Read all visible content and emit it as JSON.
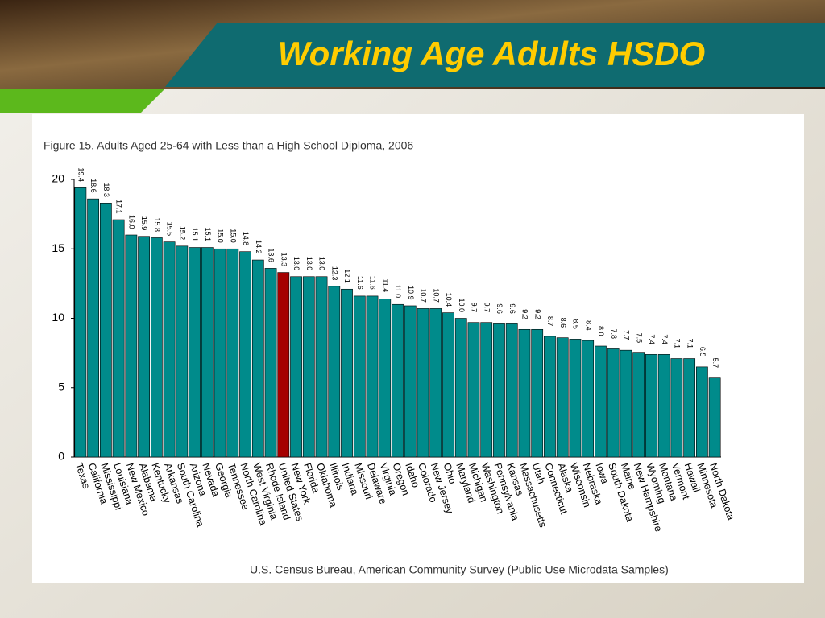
{
  "slide_title": "Working Age Adults HSDO",
  "chart_data": {
    "type": "bar",
    "title": "Figure 15. Adults Aged 25-64 with Less than a High School Diploma, 2006",
    "source": "U.S. Census Bureau, American Community Survey (Public Use Microdata Samples)",
    "categories": [
      "Texas",
      "California",
      "Mississippi",
      "Louisiana",
      "New Mexico",
      "Alabama",
      "Kentucky",
      "Arkansas",
      "South Carolina",
      "Arizona",
      "Nevada",
      "Georgia",
      "Tennessee",
      "North Carolina",
      "West Virginia",
      "Rhode Island",
      "United States",
      "New York",
      "Florida",
      "Oklahoma",
      "Illinois",
      "Indiana",
      "Missouri",
      "Delaware",
      "Virginia",
      "Oregon",
      "Idaho",
      "Colorado",
      "New Jersey",
      "Ohio",
      "Maryland",
      "Michigan",
      "Washington",
      "Pennsylvania",
      "Kansas",
      "Massachusetts",
      "Utah",
      "Connecticut",
      "Alaska",
      "Wisconsin",
      "Nebraska",
      "Iowa",
      "South Dakota",
      "Maine",
      "New Hampshire",
      "Wyoming",
      "Montana",
      "Vermont",
      "Hawaii",
      "Minnesota",
      "North Dakota"
    ],
    "values": [
      19.4,
      18.6,
      18.3,
      17.1,
      16.0,
      15.9,
      15.8,
      15.5,
      15.2,
      15.1,
      15.1,
      15.0,
      15.0,
      14.8,
      14.2,
      13.6,
      13.3,
      13.0,
      13.0,
      13.0,
      12.3,
      12.1,
      11.6,
      11.6,
      11.4,
      11.0,
      10.9,
      10.7,
      10.7,
      10.4,
      10.0,
      9.7,
      9.7,
      9.6,
      9.6,
      9.2,
      9.2,
      8.7,
      8.6,
      8.5,
      8.4,
      8.0,
      7.8,
      7.7,
      7.5,
      7.4,
      7.4,
      7.1,
      7.1,
      6.5,
      5.7
    ],
    "value_labels": [
      "19.4",
      "18.6",
      "18.3",
      "17.1",
      "16.0",
      "15.9",
      "15.8",
      "15.5",
      "15.2",
      "15.1",
      "15.1",
      "15.0",
      "15.0",
      "14.8",
      "14.2",
      "13.6",
      "13.3",
      "13.0",
      "13.0",
      "13.0",
      "12.3",
      "12.1",
      "11.6",
      "11.6",
      "11.4",
      "11.0",
      "10.9",
      "10.7",
      "10.7",
      "10.4",
      "10.0",
      "9.7",
      "9.7",
      "9.6",
      "9.6",
      "9.2",
      "9.2",
      "8.7",
      "8.6",
      "8.5",
      "8.4",
      "8.0",
      "7.8",
      "7.7",
      "7.5",
      "7.4",
      "7.4",
      "7.1",
      "7.1",
      "6.5",
      "5.7"
    ],
    "colors": [
      "#008b8b",
      "#008b8b",
      "#008b8b",
      "#008b8b",
      "#008b8b",
      "#008b8b",
      "#008b8b",
      "#008b8b",
      "#008b8b",
      "#008b8b",
      "#008b8b",
      "#008b8b",
      "#008b8b",
      "#008b8b",
      "#008b8b",
      "#008b8b",
      "#a50000",
      "#008b8b",
      "#008b8b",
      "#008b8b",
      "#008b8b",
      "#008b8b",
      "#008b8b",
      "#008b8b",
      "#008b8b",
      "#008b8b",
      "#008b8b",
      "#008b8b",
      "#008b8b",
      "#008b8b",
      "#008b8b",
      "#008b8b",
      "#008b8b",
      "#008b8b",
      "#008b8b",
      "#008b8b",
      "#008b8b",
      "#008b8b",
      "#008b8b",
      "#008b8b",
      "#008b8b",
      "#008b8b",
      "#008b8b",
      "#008b8b",
      "#008b8b",
      "#008b8b",
      "#008b8b",
      "#008b8b",
      "#008b8b",
      "#008b8b",
      "#008b8b"
    ],
    "ylim": [
      0,
      20
    ],
    "yticks": [
      0,
      5,
      10,
      15,
      20
    ],
    "grid": false
  }
}
